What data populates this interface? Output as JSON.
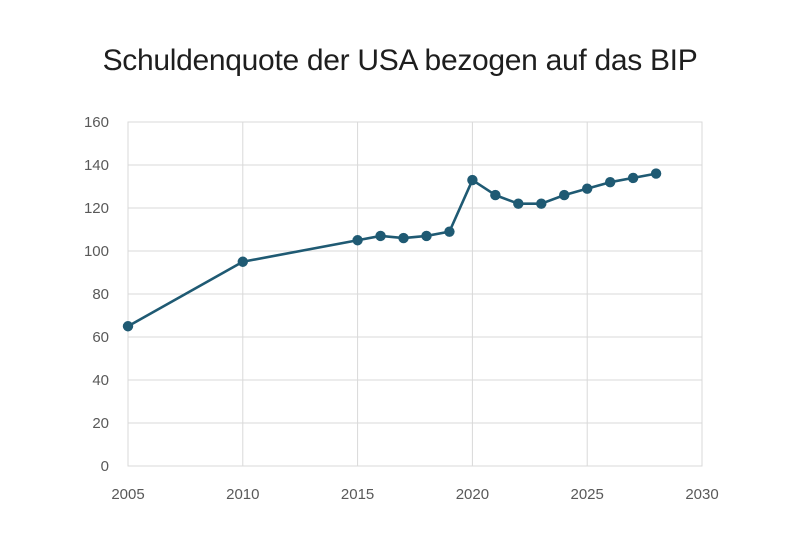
{
  "chart_data": {
    "type": "line",
    "title": "Schuldenquote der USA bezogen auf das BIP",
    "xlabel": "",
    "ylabel": "",
    "xlim": [
      2005,
      2030
    ],
    "ylim": [
      0,
      160
    ],
    "x_ticks": [
      "2005",
      "2010",
      "2015",
      "2020",
      "2025",
      "2030"
    ],
    "y_ticks": [
      "0",
      "20",
      "40",
      "60",
      "80",
      "100",
      "120",
      "140",
      "160"
    ],
    "grid": true,
    "legend": "none",
    "series": [
      {
        "color": "#1f5a73",
        "points": [
          {
            "x": 2005,
            "y": 65
          },
          {
            "x": 2010,
            "y": 95
          },
          {
            "x": 2015,
            "y": 105
          },
          {
            "x": 2016,
            "y": 107
          },
          {
            "x": 2017,
            "y": 106
          },
          {
            "x": 2018,
            "y": 107
          },
          {
            "x": 2019,
            "y": 109
          },
          {
            "x": 2020,
            "y": 133
          },
          {
            "x": 2021,
            "y": 126
          },
          {
            "x": 2022,
            "y": 122
          },
          {
            "x": 2023,
            "y": 122
          },
          {
            "x": 2024,
            "y": 126
          },
          {
            "x": 2025,
            "y": 129
          },
          {
            "x": 2026,
            "y": 132
          },
          {
            "x": 2027,
            "y": 134
          },
          {
            "x": 2028,
            "y": 136
          }
        ]
      }
    ]
  }
}
